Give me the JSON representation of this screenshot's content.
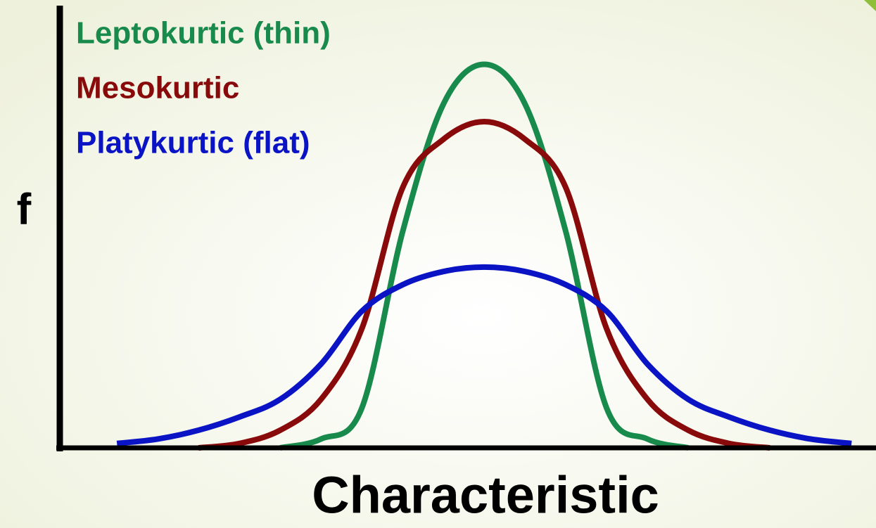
{
  "chart_data": {
    "type": "line",
    "xlabel": "Characteristic",
    "ylabel": "f",
    "x": [
      -4.5,
      -4,
      -3.5,
      -3,
      -2.5,
      -2,
      -1.5,
      -1,
      -0.5,
      0,
      0.5,
      1,
      1.5,
      2,
      2.5,
      3,
      3.5,
      4,
      4.5
    ],
    "xlim": [
      -5.2,
      4.8
    ],
    "ylim": [
      0,
      1
    ],
    "series": [
      {
        "name": "Leptokurtic (thin)",
        "color": "#178a4c",
        "values": [
          null,
          null,
          null,
          null,
          0,
          0.02,
          0.09,
          0.49,
          0.78,
          0.87,
          0.78,
          0.49,
          0.09,
          0.02,
          0,
          null,
          null,
          null,
          null
        ]
      },
      {
        "name": "Mesokurtic",
        "color": "#880a0a",
        "values": [
          null,
          null,
          0,
          0.01,
          0.04,
          0.11,
          0.27,
          0.59,
          0.7,
          0.74,
          0.7,
          0.59,
          0.27,
          0.11,
          0.04,
          0.01,
          0,
          null,
          null
        ]
      },
      {
        "name": "Platykurtic (flat)",
        "color": "#0a14c4",
        "values": [
          0.01,
          0.02,
          0.04,
          0.07,
          0.11,
          0.19,
          0.31,
          0.37,
          0.4,
          0.41,
          0.4,
          0.37,
          0.31,
          0.19,
          0.11,
          0.07,
          0.04,
          0.02,
          0.01
        ]
      }
    ]
  }
}
